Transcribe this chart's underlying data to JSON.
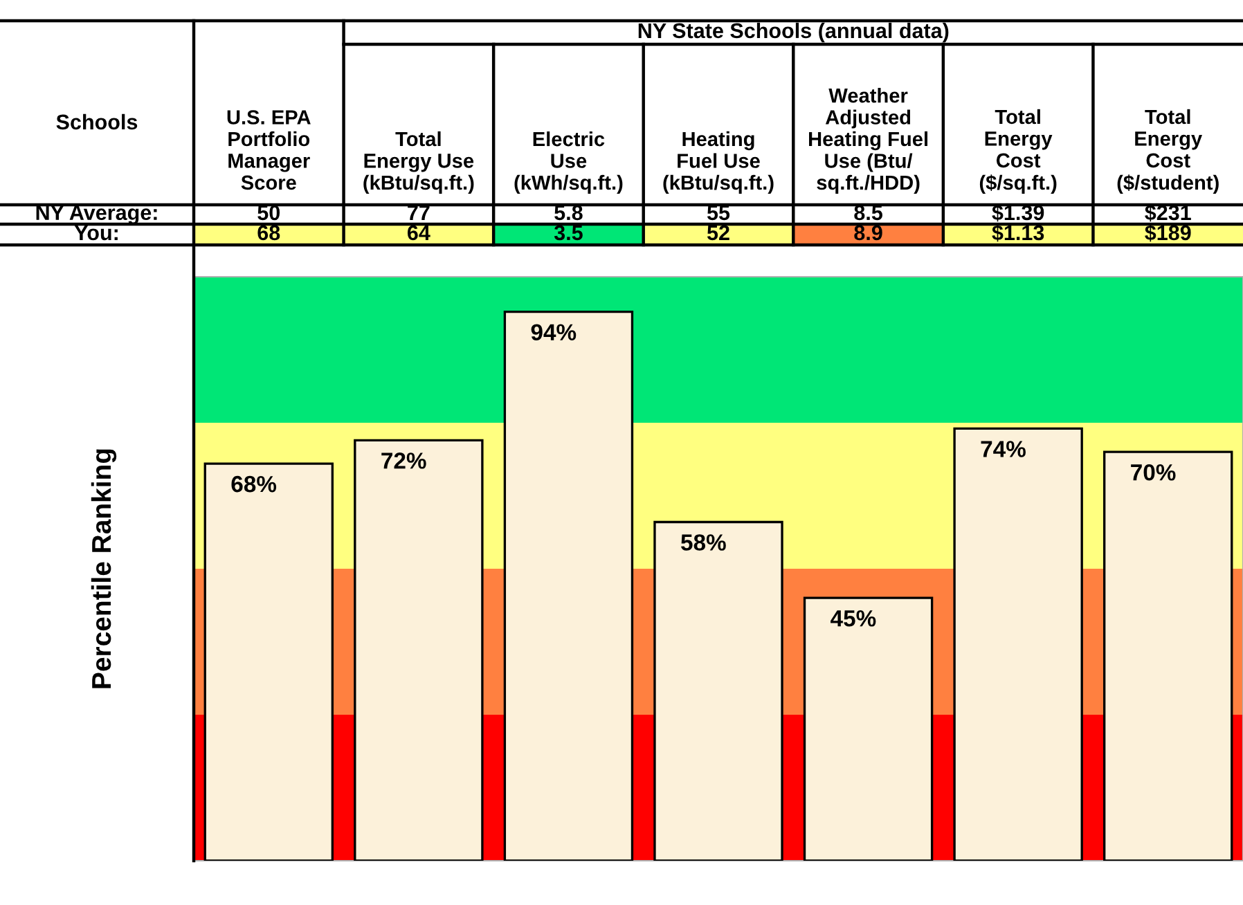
{
  "chart_data": {
    "type": "bar",
    "categories": [
      "U.S. EPA\nPortfolio\nManager\nScore",
      "Total\nEnergy Use\n(kBtu/sq.ft.)",
      "Electric\nUse\n(kWh/sq.ft.)",
      "Heating\nFuel Use\n(kBtu/sq.ft.)",
      "Weather\nAdjusted\nHeating Fuel\nUse (Btu/\nsq.ft./HDD)",
      "Total\nEnergy\nCost\n($/sq.ft.)",
      "Total\nEnergy\nCost\n($/student)"
    ],
    "values": [
      68,
      72,
      94,
      58,
      45,
      74,
      70
    ],
    "value_labels": [
      "68%",
      "72%",
      "94%",
      "58%",
      "45%",
      "74%",
      "70%"
    ],
    "color": "#fcf1da",
    "ylabel": "Percentile Ranking",
    "ylim": [
      0,
      100
    ],
    "tick_labels": false,
    "bands": [
      {
        "axis": "y",
        "from": 0,
        "to": 25,
        "label": null,
        "color": "#ff0000"
      },
      {
        "axis": "y",
        "from": 25,
        "to": 50,
        "label": null,
        "color": "#ff8040"
      },
      {
        "axis": "y",
        "from": 50,
        "to": 75,
        "label": null,
        "color": "#ffff80"
      },
      {
        "axis": "y",
        "from": 75,
        "to": 100,
        "label": null,
        "color": "#00e676"
      }
    ],
    "annotations": [
      "NY State Schools (annual data)",
      "Schools",
      "NY Average:",
      "You:",
      "50",
      "77",
      "5.8",
      "55",
      "8.5",
      "$1.39",
      "$231",
      "68",
      "64",
      "3.5",
      "52",
      "8.9",
      "$1.13",
      "$189"
    ]
  }
}
